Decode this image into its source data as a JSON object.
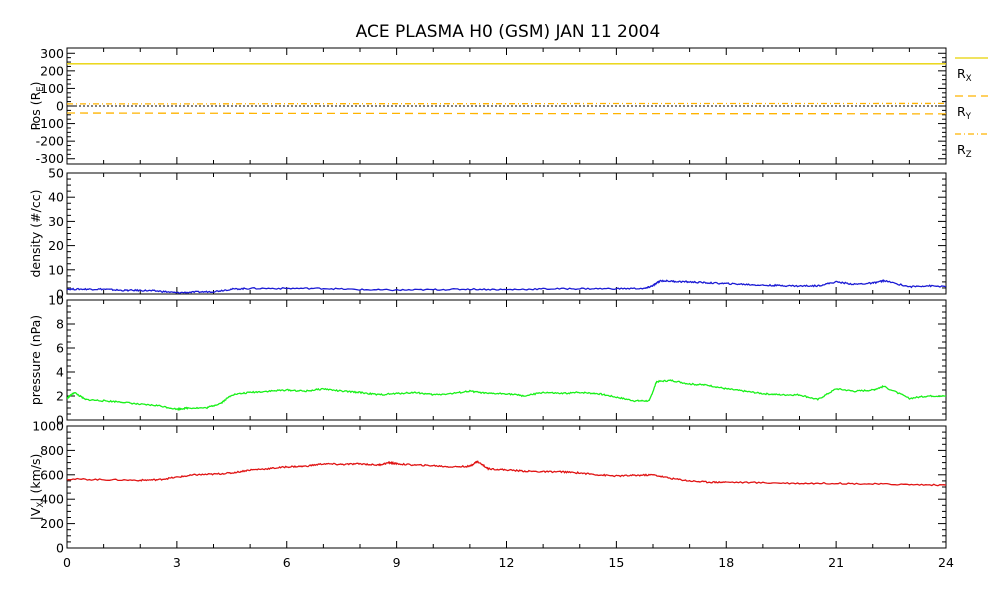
{
  "title": "ACE PLASMA H0 (GSM)   JAN 11 2004",
  "colors": {
    "position": "#ffb300",
    "position_rx": "#e8d200",
    "density": "#1a1ad4",
    "pressure": "#1af01a",
    "vx": "#e01414",
    "zero_line": "#000000"
  },
  "chart_data": [
    {
      "type": "line",
      "name": "position",
      "ylabel": "Pos (R",
      "ylabel_sub": "E",
      "ylabel_end": ")",
      "ylim": [
        -330,
        330
      ],
      "yticks": [
        "300",
        "200",
        "100",
        "0",
        "-100",
        "-200",
        "-300"
      ],
      "ytick_values": [
        300,
        200,
        100,
        0,
        -100,
        -200,
        -300
      ],
      "xlim": [
        0,
        24
      ],
      "legend": [
        {
          "label": "R",
          "sub": "X",
          "style": "solid"
        },
        {
          "label": "R",
          "sub": "Y",
          "style": "dashed"
        },
        {
          "label": "R",
          "sub": "Z",
          "style": "dashdot"
        }
      ],
      "series": [
        {
          "name": "R_X",
          "style": "solid",
          "x": [
            0,
            24
          ],
          "y": [
            240,
            240
          ]
        },
        {
          "name": "R_Y",
          "style": "dashed",
          "x": [
            0,
            3,
            6,
            9,
            12,
            15,
            18,
            21,
            24
          ],
          "y": [
            -40,
            -41,
            -42,
            -42,
            -43,
            -43,
            -44,
            -44,
            -45
          ]
        },
        {
          "name": "R_Z",
          "style": "dashdot",
          "x": [
            0,
            3,
            6,
            9,
            12,
            15,
            18,
            21,
            24
          ],
          "y": [
            12,
            12,
            13,
            13,
            13,
            14,
            14,
            14,
            15
          ]
        },
        {
          "name": "zero",
          "style": "dotted",
          "x": [
            0,
            24
          ],
          "y": [
            0,
            0
          ]
        }
      ]
    },
    {
      "type": "line",
      "name": "density",
      "ylabel": "density (#/cc)",
      "ylim": [
        0,
        50
      ],
      "yticks": [
        "50",
        "40",
        "30",
        "20",
        "10",
        "0"
      ],
      "ytick_values": [
        50,
        40,
        30,
        20,
        10,
        0
      ],
      "xlim": [
        0,
        24
      ],
      "series": [
        {
          "name": "density",
          "x": [
            0,
            0.5,
            1,
            1.5,
            2,
            2.5,
            3,
            3.5,
            4,
            4.5,
            5,
            6,
            7,
            8,
            9,
            10,
            11,
            12,
            13,
            14,
            15,
            15.8,
            16.0,
            16.2,
            16.6,
            17,
            17.5,
            18,
            18.5,
            19,
            19.5,
            20,
            20.5,
            21,
            21.5,
            22,
            22.3,
            23,
            23.5,
            24
          ],
          "y": [
            2,
            2,
            2,
            1.5,
            1.5,
            1.2,
            0.5,
            0.8,
            1,
            2,
            2.3,
            2.3,
            2.3,
            1.8,
            1.6,
            1.8,
            2,
            1.8,
            2.1,
            2.2,
            2.2,
            2.3,
            3.5,
            5.5,
            5.2,
            5,
            4.6,
            4.3,
            4,
            3.6,
            3.5,
            3.3,
            3.4,
            5,
            4,
            4.5,
            5.5,
            3,
            3.4,
            3
          ]
        }
      ]
    },
    {
      "type": "line",
      "name": "pressure",
      "ylabel": "pressure (nPa)",
      "ylim": [
        0,
        10
      ],
      "yticks": [
        "10",
        "8",
        "6",
        "4",
        "2",
        "0"
      ],
      "ytick_values": [
        10,
        8,
        6,
        4,
        2,
        0
      ],
      "xlim": [
        0,
        24
      ],
      "series": [
        {
          "name": "pressure",
          "x": [
            0,
            0.2,
            0.5,
            1,
            1.5,
            2,
            2.5,
            3,
            3.3,
            3.8,
            4.2,
            4.5,
            5,
            5.5,
            6,
            6.5,
            7,
            7.5,
            8,
            8.5,
            9,
            9.5,
            10,
            10.5,
            11,
            11.5,
            12,
            12.5,
            13,
            13.5,
            14,
            14.5,
            15,
            15.5,
            15.9,
            16.1,
            16.5,
            17,
            17.5,
            18,
            18.5,
            19,
            19.5,
            20,
            20.5,
            21,
            21.5,
            22,
            22.3,
            23,
            23.5,
            24
          ],
          "y": [
            1.8,
            2.3,
            1.7,
            1.6,
            1.5,
            1.3,
            1.2,
            0.9,
            1.0,
            1.0,
            1.4,
            2.1,
            2.3,
            2.4,
            2.5,
            2.4,
            2.6,
            2.4,
            2.3,
            2.1,
            2.2,
            2.3,
            2.1,
            2.2,
            2.4,
            2.2,
            2.2,
            2.0,
            2.3,
            2.2,
            2.3,
            2.2,
            1.9,
            1.6,
            1.6,
            3.2,
            3.3,
            3.0,
            2.9,
            2.6,
            2.4,
            2.2,
            2.1,
            2.1,
            1.7,
            2.6,
            2.4,
            2.5,
            2.8,
            1.8,
            2.0,
            2.0
          ]
        }
      ]
    },
    {
      "type": "line",
      "name": "vx",
      "ylabel": "|V",
      "ylabel_sub": "X",
      "ylabel_end": "| (km/s)",
      "ylim": [
        0,
        1000
      ],
      "yticks": [
        "1000",
        "800",
        "600",
        "400",
        "200",
        "0"
      ],
      "ytick_values": [
        1000,
        800,
        600,
        400,
        200,
        0
      ],
      "xlim": [
        0,
        24
      ],
      "xticks": [
        "0",
        "3",
        "6",
        "9",
        "12",
        "15",
        "18",
        "21",
        "24"
      ],
      "xtick_values": [
        0,
        3,
        6,
        9,
        12,
        15,
        18,
        21,
        24
      ],
      "series": [
        {
          "name": "Vx",
          "x": [
            0,
            1,
            2,
            2.5,
            3,
            3.5,
            4,
            4.5,
            5,
            5.5,
            6,
            6.5,
            7,
            7.5,
            8,
            8.5,
            8.8,
            9,
            9.5,
            10,
            10.5,
            11,
            11.2,
            11.5,
            12,
            12.5,
            13,
            13.5,
            14,
            14.5,
            15,
            15.5,
            16,
            16.5,
            17,
            17.5,
            18,
            19,
            20,
            21,
            22,
            23,
            24
          ],
          "y": [
            565,
            560,
            555,
            560,
            580,
            600,
            605,
            615,
            640,
            650,
            665,
            670,
            690,
            685,
            690,
            680,
            700,
            690,
            680,
            675,
            665,
            670,
            710,
            650,
            640,
            630,
            625,
            625,
            615,
            600,
            590,
            595,
            600,
            570,
            550,
            540,
            540,
            535,
            530,
            530,
            525,
            520,
            515
          ]
        }
      ]
    }
  ]
}
